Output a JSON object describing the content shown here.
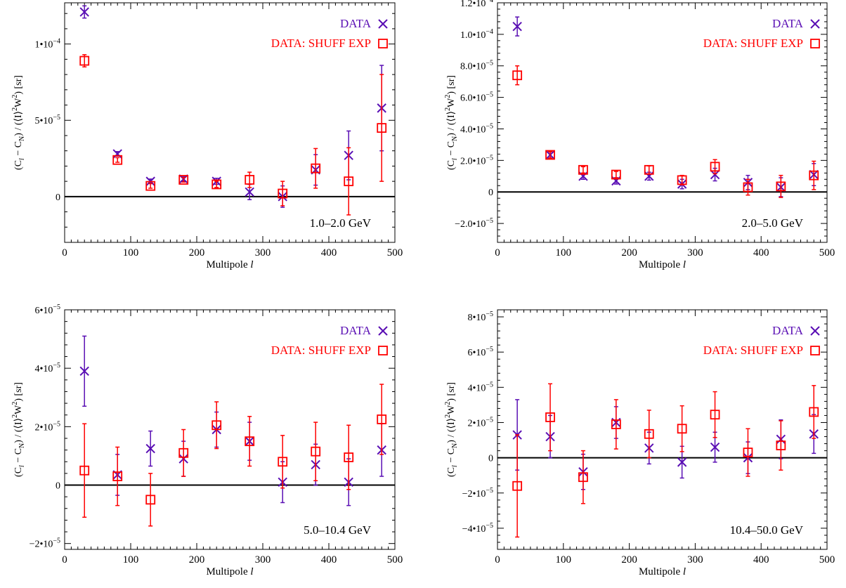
{
  "figure": {
    "xlabel_prefix": "Multipole ",
    "xlabel_var": "l",
    "legend": {
      "data_label": "DATA",
      "shuff_label": "DATA: SHUFF EXP"
    },
    "colors": {
      "data": "#5a0fb4",
      "shuff": "#ff0000",
      "axis": "#000000"
    }
  },
  "chart_data": [
    {
      "type": "scatter",
      "panel_label": "1.0–2.0 GeV",
      "xlim": [
        0,
        500
      ],
      "ylim": [
        -3e-05,
        0.000127
      ],
      "xticks": [
        0,
        100,
        200,
        300,
        400,
        500
      ],
      "yticks": [
        {
          "v": 0,
          "m": "0"
        },
        {
          "v": 5e-05,
          "m": "5•10",
          "e": "−5"
        },
        {
          "v": 0.0001,
          "m": "1•10",
          "e": "−4"
        }
      ],
      "x": [
        30,
        80,
        130,
        180,
        230,
        280,
        330,
        380,
        430,
        480
      ],
      "series": [
        {
          "name": "DATA",
          "marker": "x",
          "y": [
            0.000121,
            2.8e-05,
            1e-05,
            1.15e-05,
            1e-05,
            3e-06,
            0.0,
            1.75e-05,
            2.7e-05,
            5.8e-05
          ],
          "err": [
            4e-06,
            1.5e-06,
            1.5e-06,
            1.5e-06,
            2e-06,
            5e-06,
            7e-06,
            1e-05,
            1.6e-05,
            2.8e-05
          ]
        },
        {
          "name": "DATA: SHUFF EXP",
          "marker": "square",
          "y": [
            8.9e-05,
            2.4e-05,
            7e-06,
            1.1e-05,
            8e-06,
            1.1e-05,
            2e-06,
            1.85e-05,
            1e-05,
            4.5e-05
          ],
          "err": [
            4e-06,
            1.5e-06,
            1.5e-06,
            1.5e-06,
            2e-06,
            5e-06,
            8e-06,
            1.3e-05,
            2.2e-05,
            3.5e-05
          ]
        }
      ]
    },
    {
      "type": "scatter",
      "panel_label": "2.0–5.0 GeV",
      "xlim": [
        0,
        500
      ],
      "ylim": [
        -3.2e-05,
        0.00012
      ],
      "xticks": [
        0,
        100,
        200,
        300,
        400,
        500
      ],
      "yticks": [
        {
          "v": -2e-05,
          "m": "−2.0•10",
          "e": "−5"
        },
        {
          "v": 0,
          "m": "0"
        },
        {
          "v": 2e-05,
          "m": "2.0•10",
          "e": "−5"
        },
        {
          "v": 4e-05,
          "m": "4.0•10",
          "e": "−5"
        },
        {
          "v": 6e-05,
          "m": "6.0•10",
          "e": "−5"
        },
        {
          "v": 8e-05,
          "m": "8.0•10",
          "e": "−5"
        },
        {
          "v": 0.0001,
          "m": "1.0•10",
          "e": "−4"
        },
        {
          "v": 0.00012,
          "m": "1.2•10",
          "e": "−4"
        }
      ],
      "x": [
        30,
        80,
        130,
        180,
        230,
        280,
        330,
        380,
        430,
        480
      ],
      "series": [
        {
          "name": "DATA",
          "marker": "x",
          "y": [
            0.000105,
            2.35e-05,
            1e-05,
            7e-06,
            1e-05,
            5e-06,
            1.1e-05,
            6e-06,
            3e-06,
            1.1e-05
          ],
          "err": [
            6e-06,
            2e-06,
            2e-06,
            2e-06,
            2.5e-06,
            3e-06,
            4e-06,
            4.5e-06,
            6e-06,
            7e-06
          ]
        },
        {
          "name": "DATA: SHUFF EXP",
          "marker": "square",
          "y": [
            7.4e-05,
            2.35e-05,
            1.4e-05,
            1.1e-05,
            1.4e-05,
            7.5e-06,
            1.6e-05,
            3e-06,
            3.5e-06,
            1.05e-05
          ],
          "err": [
            6e-06,
            2e-06,
            2e-06,
            2e-06,
            2.5e-06,
            3e-06,
            4.5e-06,
            5e-06,
            7e-06,
            9e-06
          ]
        }
      ]
    },
    {
      "type": "scatter",
      "panel_label": "5.0–10.4 GeV",
      "xlim": [
        0,
        500
      ],
      "ylim": [
        -2.2e-05,
        6e-05
      ],
      "xticks": [
        0,
        100,
        200,
        300,
        400,
        500
      ],
      "yticks": [
        {
          "v": -2e-05,
          "m": "−2•10",
          "e": "−5"
        },
        {
          "v": 0,
          "m": "0"
        },
        {
          "v": 2e-05,
          "m": "2•10",
          "e": "−5"
        },
        {
          "v": 4e-05,
          "m": "4•10",
          "e": "−5"
        },
        {
          "v": 6e-05,
          "m": "6•10",
          "e": "−5"
        }
      ],
      "x": [
        30,
        80,
        130,
        180,
        230,
        280,
        330,
        380,
        430,
        480
      ],
      "series": [
        {
          "name": "DATA",
          "marker": "x",
          "y": [
            3.9e-05,
            3.5e-06,
            1.25e-05,
            9e-06,
            1.9e-05,
            1.5e-05,
            1e-06,
            7e-06,
            1e-06,
            1.2e-05
          ],
          "err": [
            1.2e-05,
            7e-06,
            6e-06,
            6e-06,
            6e-06,
            6.5e-06,
            7e-06,
            7e-06,
            8e-06,
            9e-06
          ]
        },
        {
          "name": "DATA: SHUFF EXP",
          "marker": "square",
          "y": [
            5e-06,
            3e-06,
            -5e-06,
            1.1e-05,
            2.05e-05,
            1.5e-05,
            8e-06,
            1.15e-05,
            9.5e-06,
            2.25e-05
          ],
          "err": [
            1.6e-05,
            1e-05,
            9e-06,
            8e-06,
            8e-06,
            8.5e-06,
            9e-06,
            1e-05,
            1.1e-05,
            1.2e-05
          ]
        }
      ]
    },
    {
      "type": "scatter",
      "panel_label": "10.4–50.0 GeV",
      "xlim": [
        0,
        500
      ],
      "ylim": [
        -5.2e-05,
        8.4e-05
      ],
      "xticks": [
        0,
        100,
        200,
        300,
        400,
        500
      ],
      "yticks": [
        {
          "v": -4e-05,
          "m": "−4•10",
          "e": "−5"
        },
        {
          "v": -2e-05,
          "m": "−2•10",
          "e": "−5"
        },
        {
          "v": 0,
          "m": "0"
        },
        {
          "v": 2e-05,
          "m": "2•10",
          "e": "−5"
        },
        {
          "v": 4e-05,
          "m": "4•10",
          "e": "−5"
        },
        {
          "v": 6e-05,
          "m": "6•10",
          "e": "−5"
        },
        {
          "v": 8e-05,
          "m": "8•10",
          "e": "−5"
        }
      ],
      "x": [
        30,
        80,
        130,
        180,
        230,
        280,
        330,
        380,
        430,
        480
      ],
      "series": [
        {
          "name": "DATA",
          "marker": "x",
          "y": [
            1.3e-05,
            1.2e-05,
            -8e-06,
            2e-05,
            5.5e-06,
            -2.5e-06,
            6e-06,
            0.0,
            1.05e-05,
            1.35e-05
          ],
          "err": [
            2e-05,
            1.2e-05,
            1e-05,
            9e-06,
            9e-06,
            9e-06,
            8.5e-06,
            9e-06,
            1.1e-05,
            1.1e-05
          ]
        },
        {
          "name": "DATA: SHUFF EXP",
          "marker": "square",
          "y": [
            -1.6e-05,
            2.3e-05,
            -1.1e-05,
            1.9e-05,
            1.35e-05,
            1.65e-05,
            2.45e-05,
            3e-06,
            7e-06,
            2.6e-05
          ],
          "err": [
            2.9e-05,
            1.9e-05,
            1.5e-05,
            1.4e-05,
            1.35e-05,
            1.3e-05,
            1.3e-05,
            1.35e-05,
            1.4e-05,
            1.5e-05
          ]
        }
      ]
    }
  ]
}
